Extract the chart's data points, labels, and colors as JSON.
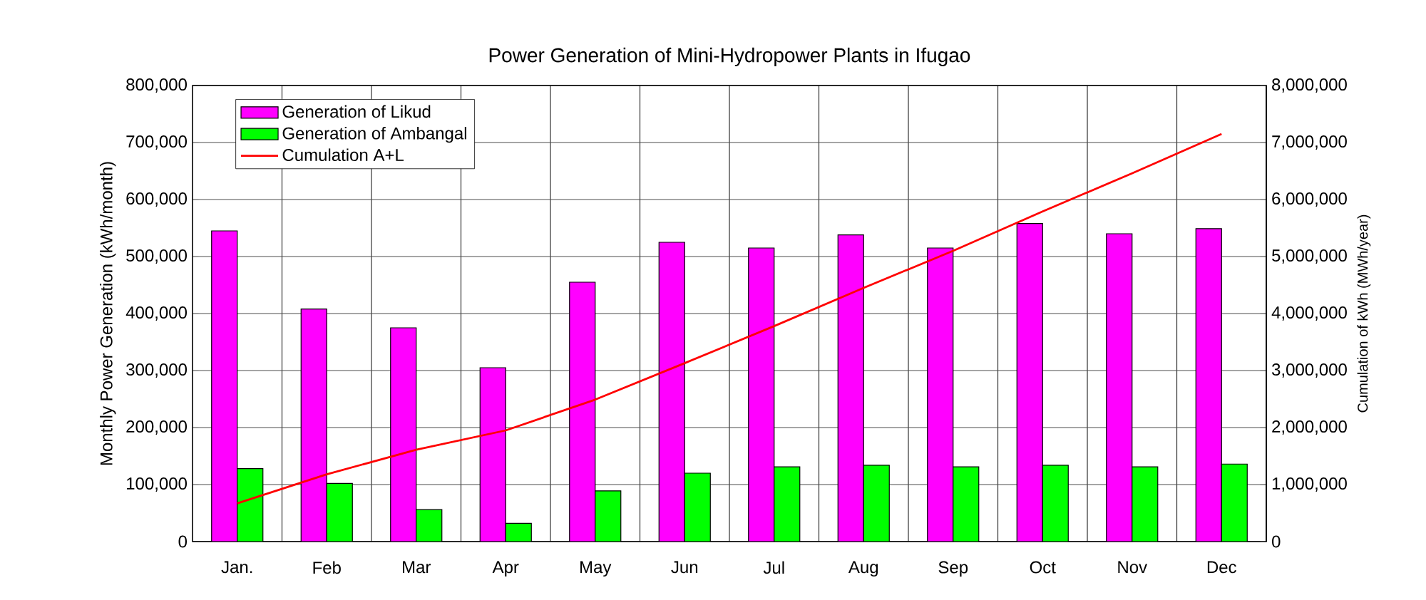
{
  "chart_data": {
    "type": "bar",
    "title": "Power Generation of Mini-Hydropower Plants in Ifugao",
    "categories": [
      "Jan.",
      "Feb",
      "Mar",
      "Apr",
      "May",
      "Jun",
      "Jul",
      "Aug",
      "Sep",
      "Oct",
      "Nov",
      "Dec"
    ],
    "series": [
      {
        "name": "Generation of Likud",
        "color": "#ff00ff",
        "values": [
          545000,
          408000,
          375000,
          305000,
          455000,
          525000,
          515000,
          538000,
          515000,
          558000,
          540000,
          549000
        ]
      },
      {
        "name": "Generation of Ambangal",
        "color": "#00ff00",
        "values": [
          128000,
          102000,
          56000,
          32000,
          89000,
          120000,
          131000,
          134000,
          131000,
          134000,
          131000,
          136000
        ]
      },
      {
        "name": "Cumulation A+L",
        "color": "#ff0000",
        "type": "line",
        "axis": "y2",
        "values": [
          670000,
          1180000,
          1610000,
          1950000,
          2490000,
          3130000,
          3780000,
          4450000,
          5100000,
          5790000,
          6460000,
          7150000
        ]
      }
    ],
    "ylabel": "Monthly Power Generation (kWh/month)",
    "y2label": "Cumulation of kWh (MWh/year)",
    "ylim": [
      0,
      800000
    ],
    "yticks": [
      {
        "value": 0,
        "label": "0"
      },
      {
        "value": 100000,
        "label": "100,000"
      },
      {
        "value": 200000,
        "label": "200,000"
      },
      {
        "value": 300000,
        "label": "300,000"
      },
      {
        "value": 400000,
        "label": "400,000"
      },
      {
        "value": 500000,
        "label": "500,000"
      },
      {
        "value": 600000,
        "label": "600,000"
      },
      {
        "value": 700000,
        "label": "700,000"
      },
      {
        "value": 800000,
        "label": "800,000"
      }
    ],
    "y2lim": [
      0,
      8000000
    ],
    "y2ticks": [
      {
        "value": 0,
        "label": "0"
      },
      {
        "value": 1000000,
        "label": "1,000,000"
      },
      {
        "value": 2000000,
        "label": "2,000,000"
      },
      {
        "value": 3000000,
        "label": "3,000,000"
      },
      {
        "value": 4000000,
        "label": "4,000,000"
      },
      {
        "value": 5000000,
        "label": "5,000,000"
      },
      {
        "value": 6000000,
        "label": "6,000,000"
      },
      {
        "value": 7000000,
        "label": "7,000,000"
      },
      {
        "value": 8000000,
        "label": "8,000,000"
      }
    ],
    "grid": true,
    "legend": "top left"
  }
}
